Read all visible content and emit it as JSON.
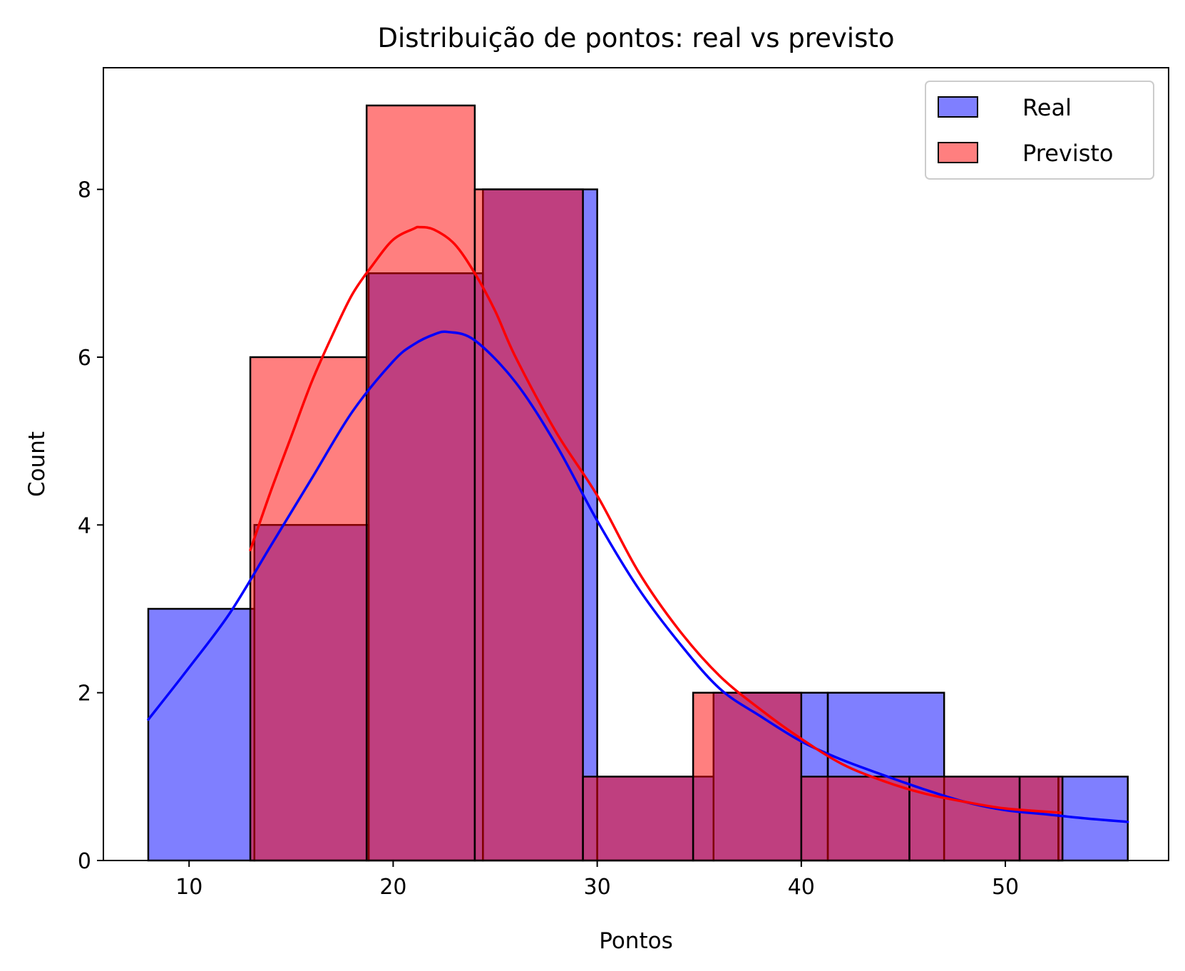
{
  "chart_data": {
    "type": "bar",
    "subtype": "histogram-with-kde",
    "title": "Distribuição de pontos: real vs previsto",
    "xlabel": "Pontos",
    "ylabel": "Count",
    "xlim": [
      5.8,
      58.0
    ],
    "ylim": [
      0,
      9.45
    ],
    "xticks": [
      10,
      20,
      30,
      40,
      50
    ],
    "yticks": [
      0,
      2,
      4,
      6,
      8
    ],
    "grid": false,
    "legend_position": "top-right",
    "series": [
      {
        "name": "Real",
        "color": "#0000ff",
        "fill_opacity": 0.5,
        "bins": [
          {
            "x0": 8.0,
            "x1": 13.2,
            "count": 3
          },
          {
            "x0": 13.2,
            "x1": 18.8,
            "count": 4
          },
          {
            "x0": 18.8,
            "x1": 24.4,
            "count": 7
          },
          {
            "x0": 24.4,
            "x1": 30.0,
            "count": 8
          },
          {
            "x0": 30.0,
            "x1": 35.7,
            "count": 1
          },
          {
            "x0": 35.7,
            "x1": 41.3,
            "count": 2
          },
          {
            "x0": 41.3,
            "x1": 47.0,
            "count": 2
          },
          {
            "x0": 47.0,
            "x1": 52.6,
            "count": 1
          },
          {
            "x0": 52.6,
            "x1": 56.0,
            "count": 1
          }
        ],
        "kde": {
          "x": [
            8,
            10,
            12,
            14,
            16,
            18,
            20,
            21,
            22,
            22.7,
            24,
            26,
            28,
            30,
            32,
            34,
            36,
            38,
            40,
            42,
            44,
            46,
            48,
            50,
            52,
            54,
            56
          ],
          "y": [
            1.68,
            2.3,
            2.95,
            3.75,
            4.55,
            5.35,
            5.95,
            6.15,
            6.27,
            6.3,
            6.2,
            5.7,
            4.95,
            4.05,
            3.25,
            2.6,
            2.05,
            1.72,
            1.42,
            1.2,
            1.02,
            0.85,
            0.7,
            0.6,
            0.55,
            0.5,
            0.46
          ]
        }
      },
      {
        "name": "Previsto",
        "color": "#ff0000",
        "fill_opacity": 0.5,
        "bins": [
          {
            "x0": 13.0,
            "x1": 18.7,
            "count": 6
          },
          {
            "x0": 18.7,
            "x1": 24.0,
            "count": 9
          },
          {
            "x0": 24.0,
            "x1": 29.3,
            "count": 8
          },
          {
            "x0": 29.3,
            "x1": 34.7,
            "count": 1
          },
          {
            "x0": 34.7,
            "x1": 40.0,
            "count": 2
          },
          {
            "x0": 40.0,
            "x1": 45.3,
            "count": 1
          },
          {
            "x0": 45.3,
            "x1": 50.7,
            "count": 1
          },
          {
            "x0": 50.7,
            "x1": 52.8,
            "count": 1
          }
        ],
        "kde": {
          "x": [
            13,
            14,
            15,
            16,
            17,
            18,
            19,
            20,
            21,
            21.3,
            22,
            23,
            24,
            25,
            26,
            28,
            30,
            32,
            34,
            36,
            38,
            40,
            42,
            44,
            46,
            48,
            50,
            52.7
          ],
          "y": [
            3.7,
            4.4,
            5.05,
            5.7,
            6.25,
            6.75,
            7.1,
            7.4,
            7.53,
            7.55,
            7.52,
            7.35,
            7.0,
            6.55,
            6.0,
            5.1,
            4.35,
            3.45,
            2.75,
            2.2,
            1.8,
            1.45,
            1.15,
            0.95,
            0.8,
            0.7,
            0.62,
            0.57
          ]
        }
      }
    ]
  }
}
